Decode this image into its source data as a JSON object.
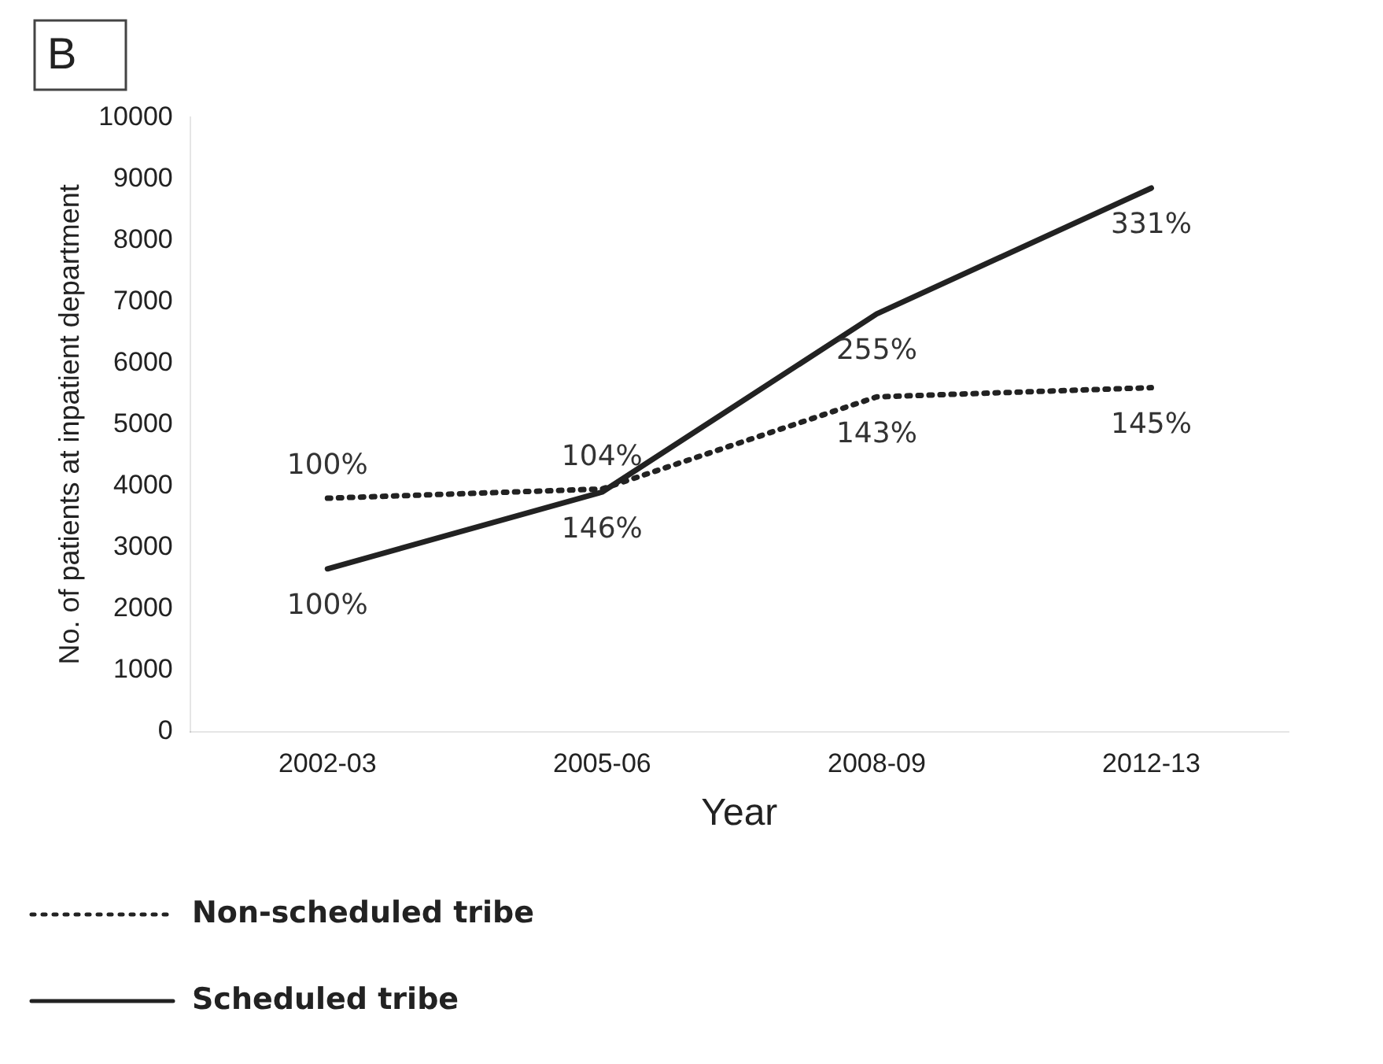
{
  "chart_data": {
    "type": "line",
    "title": "B",
    "xlabel": "Year",
    "ylabel": "No. of patients at inpatient department",
    "categories": [
      "2002-03",
      "2005-06",
      "2008-09",
      "2012-13"
    ],
    "series": [
      {
        "name": "Non-scheduled tribe",
        "color": "#222222",
        "line_style": "dotted",
        "values": [
          3800,
          3950,
          5450,
          5600
        ]
      },
      {
        "name": "Scheduled tribe",
        "color": "#222222",
        "line_style": "solid",
        "values": [
          2650,
          3900,
          6800,
          8850
        ]
      }
    ],
    "annotations": [
      {
        "text": "100%",
        "x": "2002-03",
        "y": 3800
      },
      {
        "text": "104%",
        "x": "2005-06",
        "y": 3950
      },
      {
        "text": "143%",
        "x": "2008-09",
        "y": 5450
      },
      {
        "text": "145%",
        "x": "2012-13",
        "y": 5600
      },
      {
        "text": "100%",
        "x": "2002-03",
        "y": 2650
      },
      {
        "text": "146%",
        "x": "2005-06",
        "y": 3900
      },
      {
        "text": "255%",
        "x": "2008-09",
        "y": 6800
      },
      {
        "text": "331%",
        "x": "2012-13",
        "y": 8850
      }
    ],
    "ylim": [
      0,
      10000
    ],
    "yticks": [
      0,
      1000,
      2000,
      3000,
      4000,
      5000,
      6000,
      7000,
      8000,
      9000,
      10000
    ],
    "grid": false,
    "legend": "bottom",
    "marker": "none"
  }
}
